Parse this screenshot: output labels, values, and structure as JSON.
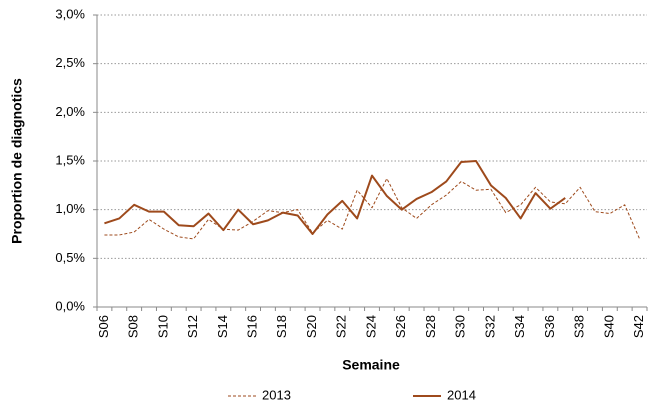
{
  "chart_data": {
    "type": "line",
    "categories": [
      "S06",
      null,
      "S08",
      null,
      "S10",
      null,
      "S12",
      null,
      "S14",
      null,
      "S16",
      null,
      "S18",
      null,
      "S20",
      null,
      "S22",
      null,
      "S24",
      null,
      "S26",
      null,
      "S28",
      null,
      "S30",
      null,
      "S32",
      null,
      "S34",
      null,
      "S36",
      null,
      "S38",
      null,
      "S40",
      null,
      "S42"
    ],
    "x_label": "Semaine",
    "y_label": "Proportion de diagnotics",
    "ylim": [
      0,
      3
    ],
    "yticks": [
      {
        "value": 0,
        "label": "0,0%"
      },
      {
        "value": 0.5,
        "label": "0,5%"
      },
      {
        "value": 1,
        "label": "1,0%"
      },
      {
        "value": 1.5,
        "label": "1,5%"
      },
      {
        "value": 2,
        "label": "2,0%"
      },
      {
        "value": 2.5,
        "label": "2,5%"
      },
      {
        "value": 3,
        "label": "3,0%"
      }
    ],
    "grid": true,
    "legend": "bottom",
    "series": [
      {
        "name": "2013",
        "color": "#9e4a1c",
        "style": "dashed",
        "values": [
          0.74,
          0.74,
          0.77,
          0.9,
          0.8,
          0.72,
          0.7,
          0.9,
          0.8,
          0.79,
          0.88,
          0.99,
          0.97,
          1.0,
          0.76,
          0.89,
          0.8,
          1.2,
          1.02,
          1.32,
          1.02,
          0.91,
          1.05,
          1.15,
          1.29,
          1.2,
          1.21,
          0.97,
          1.05,
          1.23,
          1.08,
          1.06,
          1.23,
          0.98,
          0.96,
          1.05,
          0.7
        ]
      },
      {
        "name": "2014",
        "color": "#9e4a1c",
        "style": "solid",
        "values": [
          0.86,
          0.91,
          1.05,
          0.98,
          0.98,
          0.84,
          0.83,
          0.96,
          0.79,
          1.0,
          0.85,
          0.89,
          0.97,
          0.94,
          0.75,
          0.95,
          1.09,
          0.91,
          1.35,
          1.14,
          1.0,
          1.11,
          1.18,
          1.29,
          1.49,
          1.5,
          1.25,
          1.12,
          0.91,
          1.17,
          1.01,
          1.12,
          null,
          null,
          null,
          null,
          null
        ]
      }
    ]
  }
}
